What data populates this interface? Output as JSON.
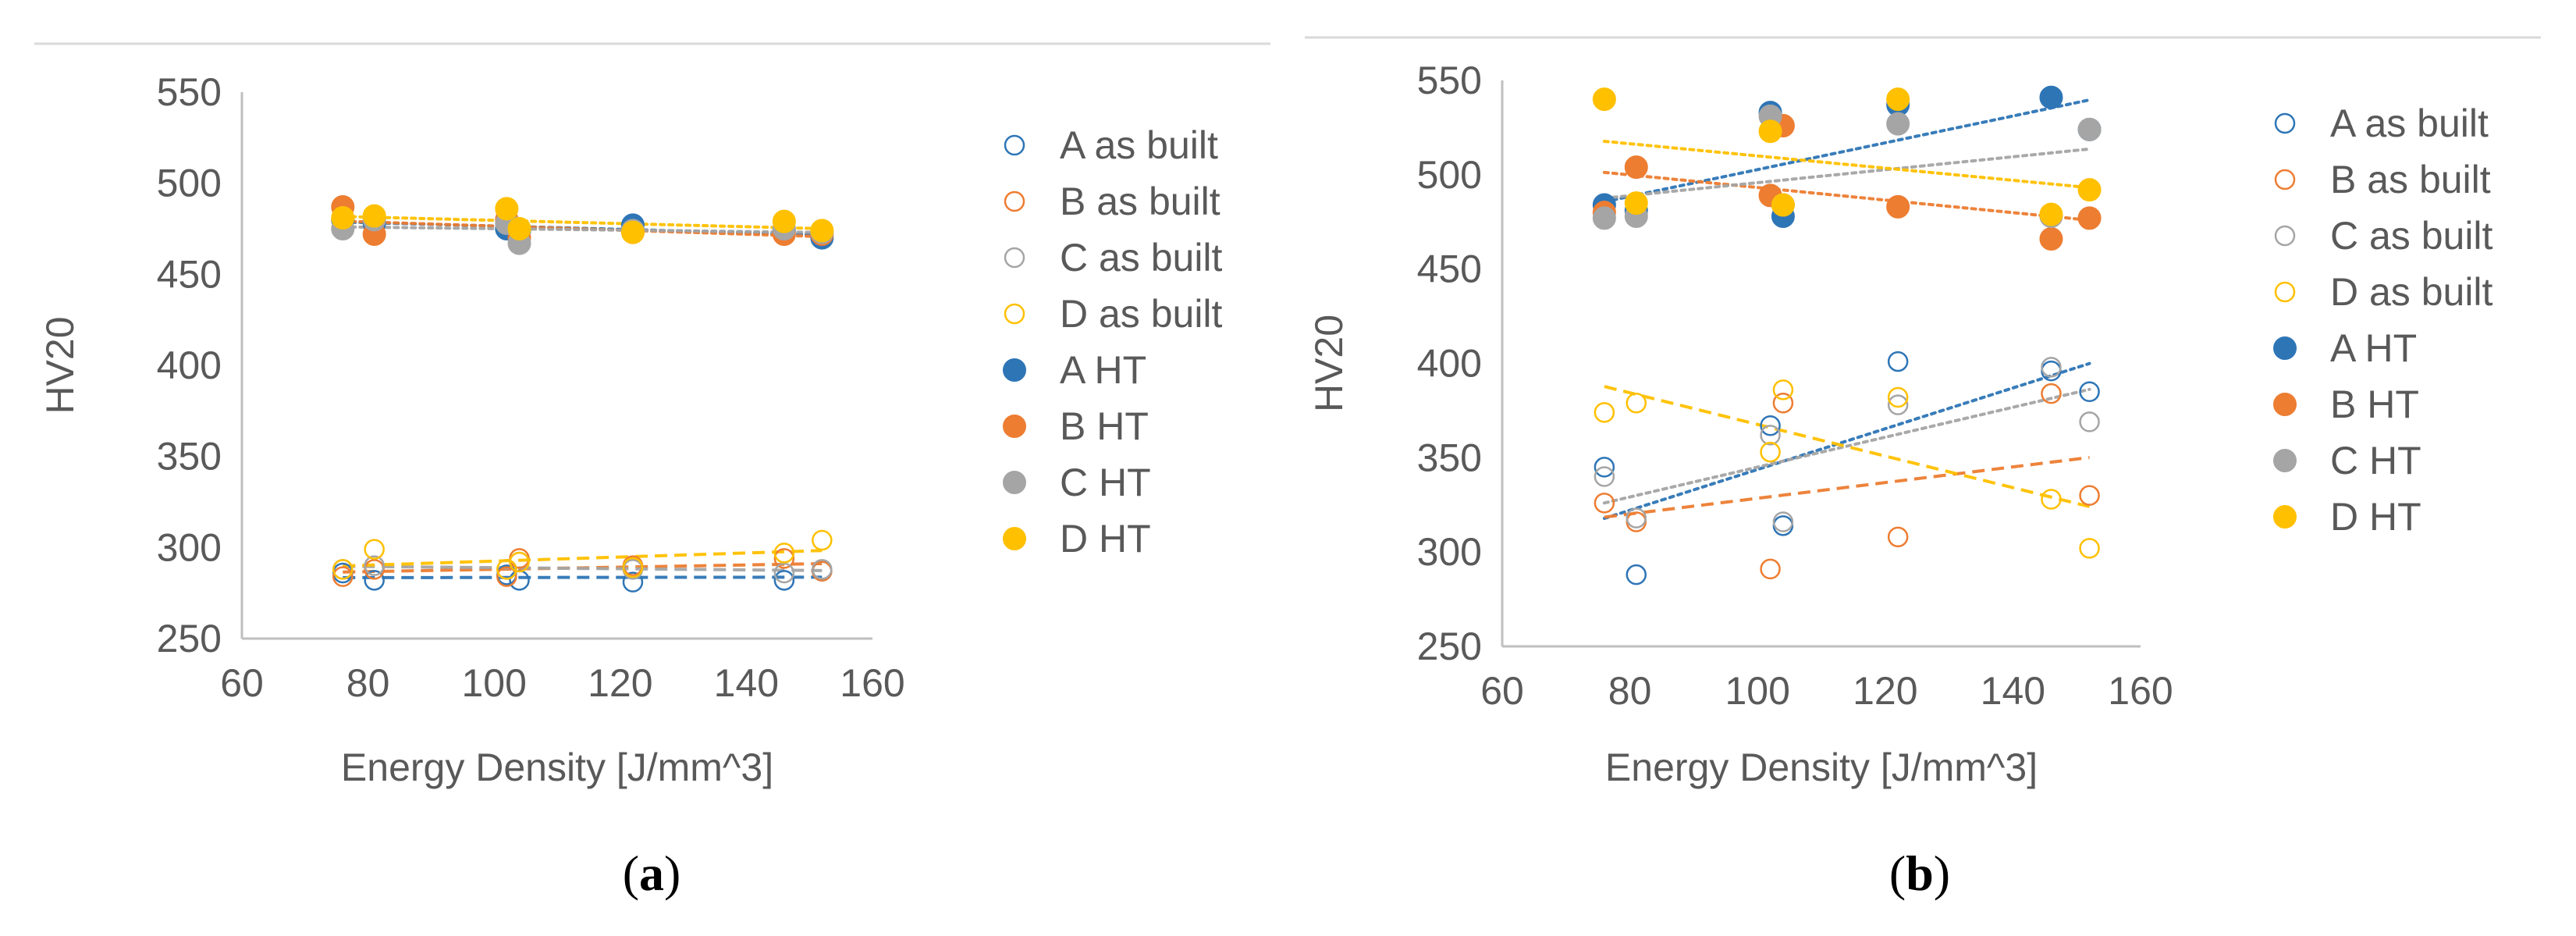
{
  "colors": {
    "A": "#2e75b6",
    "B": "#ed7d31",
    "C": "#a5a5a5",
    "D": "#ffc000",
    "axis": "#bfbfbf",
    "text": "#595959"
  },
  "chart_data": [
    {
      "type": "scatter",
      "panel": "a",
      "caption": "a",
      "xlabel": "Energy Density [J/mm^3]",
      "ylabel": "HV20",
      "xlim": [
        60,
        160
      ],
      "ylim": [
        250,
        550
      ],
      "xticks": [
        60,
        80,
        100,
        120,
        140,
        160
      ],
      "yticks": [
        250,
        300,
        350,
        400,
        450,
        500,
        550
      ],
      "grid": false,
      "legend_position": "right",
      "series": [
        {
          "name": "A as built",
          "group": "A",
          "filled": false,
          "trend": "dashed",
          "x": [
            76,
            81,
            102,
            104,
            122,
            146,
            152
          ],
          "y": [
            286,
            282,
            285,
            282,
            281,
            282,
            287
          ]
        },
        {
          "name": "B as built",
          "group": "B",
          "filled": false,
          "trend": "dashed",
          "x": [
            76,
            81,
            102,
            104,
            122,
            146,
            152
          ],
          "y": [
            284,
            288,
            284,
            294,
            290,
            294,
            287
          ]
        },
        {
          "name": "C as built",
          "group": "C",
          "filled": false,
          "trend": "dashed",
          "x": [
            76,
            81,
            102,
            104,
            122,
            146,
            152
          ],
          "y": [
            288,
            290,
            288,
            292,
            288,
            286,
            288
          ]
        },
        {
          "name": "D as built",
          "group": "D",
          "filled": false,
          "trend": "dashed",
          "x": [
            76,
            81,
            102,
            104,
            122,
            146,
            152
          ],
          "y": [
            288,
            299,
            288,
            292,
            289,
            297,
            304
          ]
        },
        {
          "name": "A HT",
          "group": "A",
          "filled": true,
          "trend": "dotted",
          "x": [
            76,
            81,
            102,
            104,
            122,
            146,
            152
          ],
          "y": [
            480,
            478,
            475,
            474,
            477,
            474,
            470
          ]
        },
        {
          "name": "B HT",
          "group": "B",
          "filled": true,
          "trend": "dotted",
          "x": [
            76,
            81,
            102,
            104,
            122,
            146,
            152
          ],
          "y": [
            487,
            472,
            480,
            470,
            473,
            472,
            472
          ]
        },
        {
          "name": "C HT",
          "group": "C",
          "filled": true,
          "trend": "dotted",
          "x": [
            76,
            81,
            102,
            104,
            122,
            146,
            152
          ],
          "y": [
            475,
            480,
            478,
            467,
            474,
            475,
            473
          ]
        },
        {
          "name": "D HT",
          "group": "D",
          "filled": true,
          "trend": "dotted",
          "x": [
            76,
            81,
            102,
            104,
            122,
            146,
            152
          ],
          "y": [
            481,
            482,
            486,
            475,
            473,
            479,
            474
          ]
        }
      ]
    },
    {
      "type": "scatter",
      "panel": "b",
      "caption": "b",
      "xlabel": "Energy Density [J/mm^3]",
      "ylabel": "HV20",
      "xlim": [
        60,
        160
      ],
      "ylim": [
        250,
        550
      ],
      "xticks": [
        60,
        80,
        100,
        120,
        140,
        160
      ],
      "yticks": [
        250,
        300,
        350,
        400,
        450,
        500,
        550
      ],
      "grid": false,
      "legend_position": "right",
      "series": [
        {
          "name": "A as built",
          "group": "A",
          "filled": false,
          "trend": "dotted",
          "x": [
            76,
            81,
            102,
            104,
            122,
            146,
            152
          ],
          "y": [
            345,
            288,
            367,
            314,
            401,
            396,
            385
          ]
        },
        {
          "name": "B as built",
          "group": "B",
          "filled": false,
          "trend": "dashed",
          "x": [
            76,
            81,
            102,
            104,
            122,
            146,
            152
          ],
          "y": [
            326,
            316,
            291,
            379,
            308,
            384,
            330
          ]
        },
        {
          "name": "C as built",
          "group": "C",
          "filled": false,
          "trend": "dotted",
          "x": [
            76,
            81,
            102,
            104,
            122,
            146,
            152
          ],
          "y": [
            340,
            318,
            362,
            316,
            378,
            398,
            369
          ]
        },
        {
          "name": "D as built",
          "group": "D",
          "filled": false,
          "trend": "dashed",
          "x": [
            76,
            81,
            102,
            104,
            122,
            146,
            152
          ],
          "y": [
            374,
            379,
            353,
            386,
            382,
            328,
            302
          ]
        },
        {
          "name": "A HT",
          "group": "A",
          "filled": true,
          "trend": "dotted",
          "x": [
            76,
            81,
            102,
            104,
            122,
            146,
            152
          ],
          "y": [
            484,
            481,
            533,
            478,
            537,
            541,
            524
          ]
        },
        {
          "name": "B HT",
          "group": "B",
          "filled": true,
          "trend": "dotted",
          "x": [
            76,
            81,
            102,
            104,
            122,
            146,
            152
          ],
          "y": [
            480,
            504,
            489,
            526,
            483,
            466,
            477
          ]
        },
        {
          "name": "C HT",
          "group": "C",
          "filled": true,
          "trend": "dotted",
          "x": [
            76,
            81,
            102,
            104,
            122,
            146,
            152
          ],
          "y": [
            477,
            478,
            531,
            484,
            527,
            478,
            524
          ]
        },
        {
          "name": "D HT",
          "group": "D",
          "filled": true,
          "trend": "dotted",
          "x": [
            76,
            81,
            102,
            104,
            122,
            146,
            152
          ],
          "y": [
            540,
            485,
            523,
            484,
            540,
            479,
            492
          ]
        }
      ]
    }
  ]
}
